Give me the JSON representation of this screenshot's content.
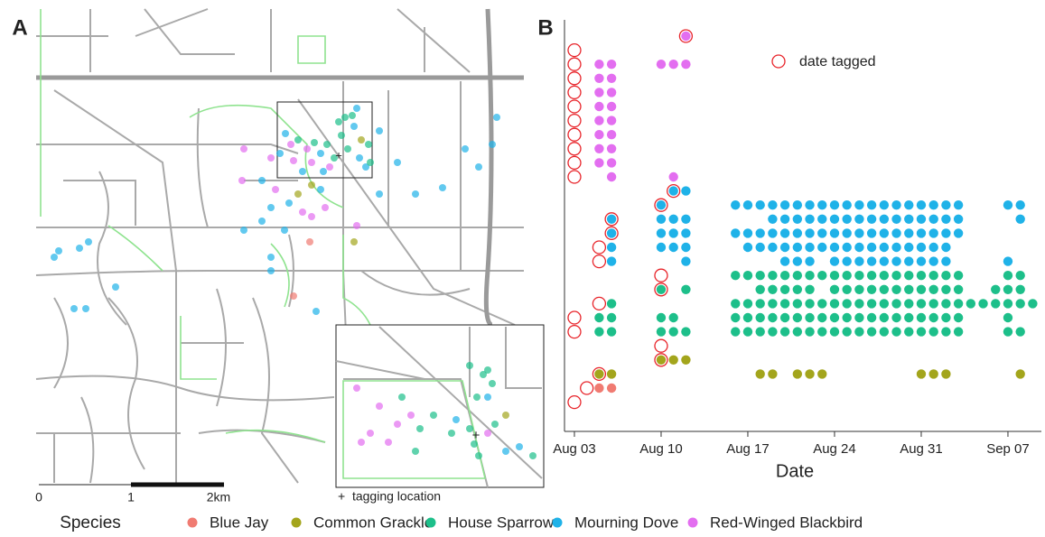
{
  "chart_data": [
    {
      "type": "map",
      "label": "A",
      "scale_labels": [
        "0",
        "1",
        "2km"
      ],
      "inset_note": "+  tagging location"
    },
    {
      "type": "dotplot",
      "label": "B",
      "xlabel": "Date",
      "legend_tagged": "date tagged",
      "tagged_color": "#e8252b",
      "xlim": [
        2.2,
        40.7
      ],
      "xticks": [
        {
          "value": 3,
          "label": "Aug 03"
        },
        {
          "value": 10,
          "label": "Aug 10"
        },
        {
          "value": 17,
          "label": "Aug 17"
        },
        {
          "value": 24,
          "label": "Aug 24"
        },
        {
          "value": 31,
          "label": "Aug 31"
        },
        {
          "value": 38,
          "label": "Sep 07"
        }
      ],
      "birds": [
        {
          "species": "Red-Winged Blackbird",
          "tagged": 12,
          "days": [
            12
          ]
        },
        {
          "species": "Red-Winged Blackbird",
          "tagged": 3,
          "days": []
        },
        {
          "species": "Red-Winged Blackbird",
          "tagged": 3,
          "days": [
            5,
            6,
            10,
            11,
            12
          ]
        },
        {
          "species": "Red-Winged Blackbird",
          "tagged": 3,
          "days": [
            5,
            6
          ]
        },
        {
          "species": "Red-Winged Blackbird",
          "tagged": 3,
          "days": [
            5,
            6
          ]
        },
        {
          "species": "Red-Winged Blackbird",
          "tagged": 3,
          "days": [
            5,
            6
          ]
        },
        {
          "species": "Red-Winged Blackbird",
          "tagged": 3,
          "days": [
            5,
            6
          ]
        },
        {
          "species": "Red-Winged Blackbird",
          "tagged": 3,
          "days": [
            5,
            6
          ]
        },
        {
          "species": "Red-Winged Blackbird",
          "tagged": 3,
          "days": [
            5,
            6
          ]
        },
        {
          "species": "Red-Winged Blackbird",
          "tagged": 3,
          "days": [
            5,
            6
          ]
        },
        {
          "species": "Red-Winged Blackbird",
          "tagged": 3,
          "days": [
            6,
            11
          ]
        },
        {
          "species": "Mourning Dove",
          "tagged": 11,
          "days": [
            11,
            12
          ]
        },
        {
          "species": "Mourning Dove",
          "tagged": 10,
          "days": [
            10,
            16,
            17,
            18,
            19,
            20,
            21,
            22,
            23,
            24,
            25,
            26,
            27,
            28,
            29,
            30,
            31,
            32,
            33,
            34,
            38,
            39
          ]
        },
        {
          "species": "Mourning Dove",
          "tagged": 6,
          "days": [
            6,
            10,
            11,
            12,
            19,
            20,
            21,
            22,
            23,
            24,
            25,
            26,
            27,
            28,
            29,
            30,
            31,
            32,
            33,
            34,
            39
          ]
        },
        {
          "species": "Mourning Dove",
          "tagged": 6,
          "days": [
            6,
            10,
            11,
            12,
            16,
            17,
            18,
            19,
            20,
            21,
            22,
            23,
            24,
            25,
            26,
            27,
            28,
            29,
            30,
            31,
            32,
            33,
            34
          ]
        },
        {
          "species": "Mourning Dove",
          "tagged": 5,
          "days": [
            6,
            10,
            11,
            12,
            17,
            18,
            19,
            20,
            21,
            22,
            23,
            24,
            25,
            26,
            27,
            28,
            29,
            30,
            31,
            32,
            33
          ]
        },
        {
          "species": "Mourning Dove",
          "tagged": 5,
          "days": [
            6,
            12,
            20,
            21,
            22,
            24,
            25,
            26,
            27,
            28,
            29,
            30,
            31,
            32,
            33,
            38
          ]
        },
        {
          "species": "House Sparrow",
          "tagged": 10,
          "days": [
            16,
            17,
            18,
            19,
            20,
            21,
            22,
            23,
            24,
            25,
            26,
            27,
            28,
            29,
            30,
            31,
            32,
            33,
            34,
            38,
            39
          ]
        },
        {
          "species": "House Sparrow",
          "tagged": 10,
          "days": [
            10,
            12,
            18,
            19,
            20,
            21,
            22,
            24,
            25,
            26,
            27,
            28,
            29,
            30,
            31,
            32,
            33,
            34,
            37,
            38,
            39
          ]
        },
        {
          "species": "House Sparrow",
          "tagged": 5,
          "days": [
            6,
            16,
            17,
            18,
            19,
            20,
            21,
            22,
            23,
            24,
            25,
            26,
            27,
            28,
            29,
            30,
            31,
            32,
            33,
            34,
            35,
            36,
            37,
            38,
            39,
            40
          ]
        },
        {
          "species": "House Sparrow",
          "tagged": 3,
          "days": [
            5,
            6,
            10,
            11,
            16,
            17,
            18,
            19,
            20,
            21,
            22,
            23,
            24,
            25,
            26,
            27,
            28,
            29,
            30,
            31,
            32,
            33,
            34,
            38
          ]
        },
        {
          "species": "House Sparrow",
          "tagged": 3,
          "days": [
            5,
            6,
            10,
            11,
            12,
            16,
            17,
            18,
            19,
            20,
            21,
            22,
            23,
            24,
            25,
            26,
            27,
            28,
            29,
            30,
            31,
            32,
            33,
            34,
            38,
            39
          ]
        },
        {
          "species": "House Sparrow",
          "tagged": 10,
          "days": []
        },
        {
          "species": "Common Grackle",
          "tagged": 10,
          "days": [
            10,
            11,
            12
          ]
        },
        {
          "species": "Common Grackle",
          "tagged": 5,
          "days": [
            5,
            6,
            18,
            19,
            21,
            22,
            23,
            31,
            32,
            33,
            39
          ]
        },
        {
          "species": "Blue Jay",
          "tagged": 4,
          "days": [
            5,
            6
          ]
        },
        {
          "species": "Blue Jay",
          "tagged": 3,
          "days": []
        }
      ]
    }
  ],
  "legend": {
    "title": "Species",
    "series": [
      {
        "name": "Blue Jay",
        "color": "#f07b72"
      },
      {
        "name": "Common Grackle",
        "color": "#a3a51c"
      },
      {
        "name": "House Sparrow",
        "color": "#1dbf8a"
      },
      {
        "name": "Mourning Dove",
        "color": "#1fb2e8"
      },
      {
        "name": "Red-Winged Blackbird",
        "color": "#e36ef0"
      }
    ]
  }
}
